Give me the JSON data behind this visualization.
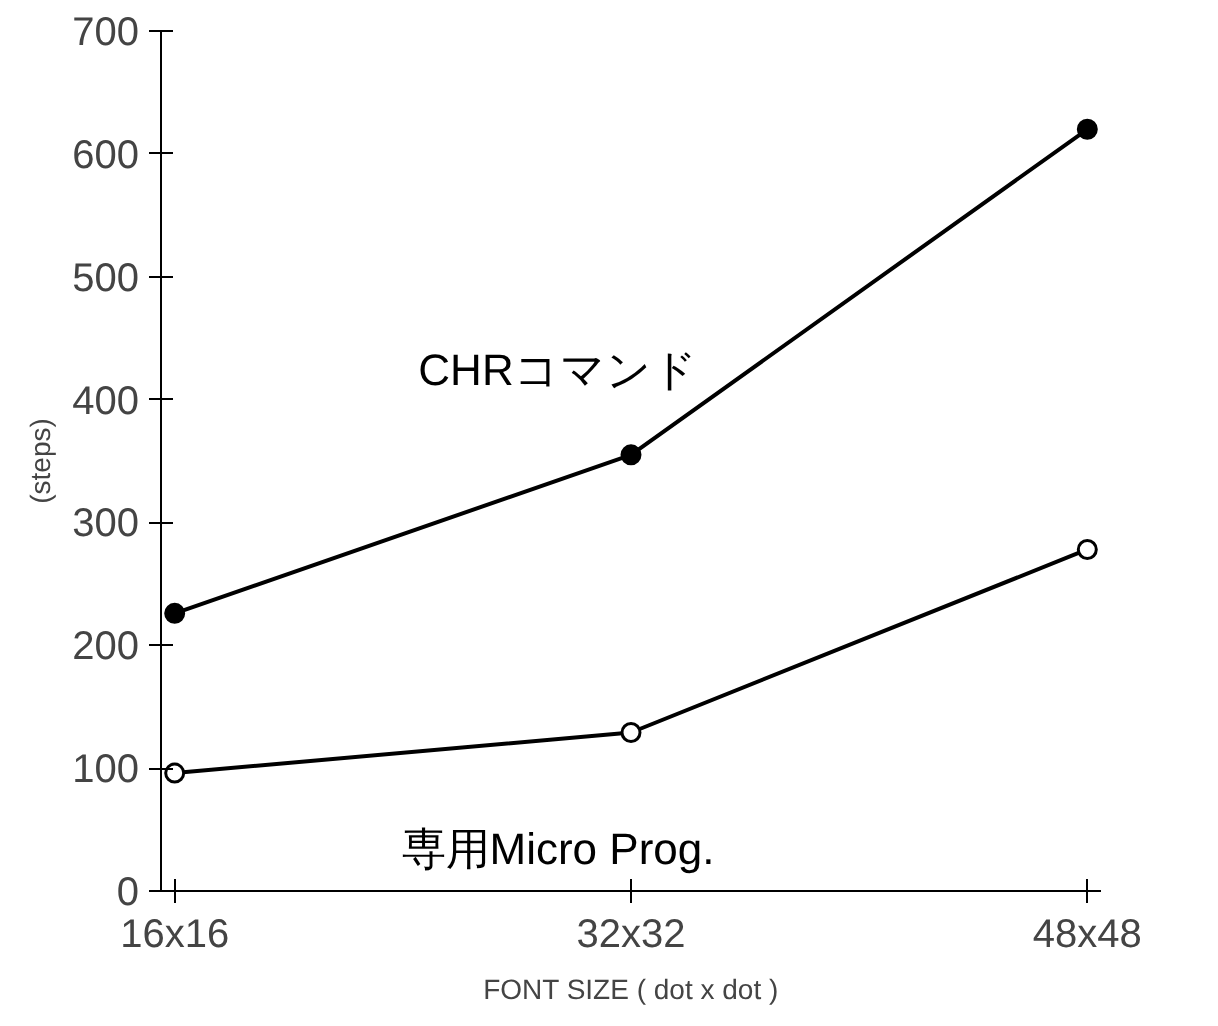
{
  "chart_data": {
    "type": "line",
    "xlabel": "FONT SIZE ( dot x dot )",
    "ylabel": "(steps)",
    "categories": [
      "16x16",
      "32x32",
      "48x48"
    ],
    "series": [
      {
        "name": "CHRコマンド",
        "color": "#000000",
        "values": [
          226,
          355,
          620
        ],
        "marker": "circle"
      },
      {
        "name": "専用Micro Prog.",
        "color": "#000000",
        "values": [
          96,
          129,
          278
        ],
        "marker": "circle"
      }
    ],
    "ylim": [
      0,
      700
    ],
    "yticks": [
      0,
      100,
      200,
      300,
      400,
      500,
      600,
      700
    ],
    "grid": false,
    "line_style": "solid"
  }
}
